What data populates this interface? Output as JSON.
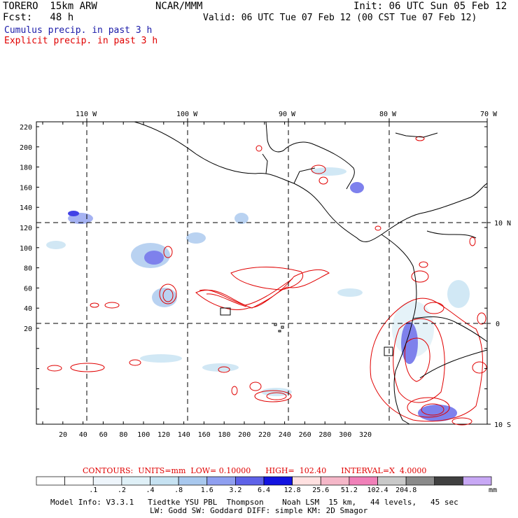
{
  "header": {
    "model": "TORERO  15km ARW",
    "org": "NCAR/MMM",
    "init": "Init: 06 UTC Sun 05 Feb 12",
    "fcst": "Fcst:   48 h",
    "valid": "Valid: 06 UTC Tue 07 Feb 12 (00 CST Tue 07 Feb 12)",
    "cumulus": "Cumulus precip. in past 3 h",
    "explicit": "Explicit precip. in past 3 h"
  },
  "map": {
    "lon_labels": [
      "110 W",
      "100 W",
      "90 W",
      "80 W",
      "70 W"
    ],
    "lat_labels": [
      "10 N",
      "0",
      "10 S"
    ],
    "y_ticks": [
      "220",
      "200",
      "180",
      "160",
      "140",
      "120",
      "100",
      "80",
      "60",
      "40",
      "20"
    ],
    "x_ticks": [
      "20",
      "40",
      "60",
      "80",
      "100",
      "120",
      "140",
      "160",
      "180",
      "200",
      "220",
      "240",
      "260",
      "280",
      "300",
      "320"
    ]
  },
  "contours": {
    "text": "CONTOURS:  UNITS=mm  LOW= 0.10000      HIGH=  102.40      INTERVAL=X  4.0000"
  },
  "colorbar": {
    "colors": [
      "#ffffff",
      "#ffffff",
      "#eef5fb",
      "#dff0f7",
      "#c6e2f2",
      "#a8c8ee",
      "#8f9ff0",
      "#5e62e8",
      "#1313e0",
      "#ffe0e0",
      "#f5b7c8",
      "#f080b8",
      "#c9c9c9",
      "#8a8a8a",
      "#404040",
      "#c8a8f5"
    ],
    "labels": [
      ".1",
      ".2",
      ".4",
      ".8",
      "1.6",
      "3.2",
      "6.4",
      "12.8",
      "25.6",
      "51.2",
      "102.4",
      "204.8"
    ],
    "unit": "mm"
  },
  "model_info": {
    "line1": "Model Info: V3.3.1   Tiedtke YSU PBL  Thompson    Noah LSM  15 km,   44 levels,   45 sec",
    "line2": "LW: Godd SW: Goddard DIFF: simple KM: 2D Smagor"
  }
}
